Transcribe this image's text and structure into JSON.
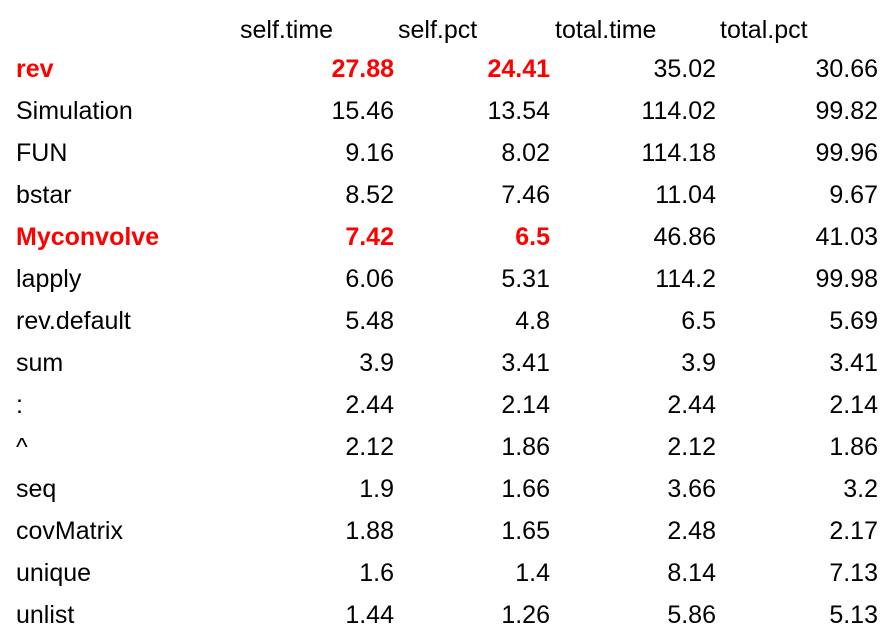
{
  "table": {
    "columns": [
      "self.time",
      "self.pct",
      "total.time",
      "total.pct"
    ],
    "rows": [
      {
        "name": "rev",
        "self_time": "27.88",
        "self_pct": "24.41",
        "total_time": "35.02",
        "total_pct": "30.66",
        "highlight": true
      },
      {
        "name": "Simulation",
        "self_time": "15.46",
        "self_pct": "13.54",
        "total_time": "114.02",
        "total_pct": "99.82",
        "highlight": false
      },
      {
        "name": "FUN",
        "self_time": "9.16",
        "self_pct": "8.02",
        "total_time": "114.18",
        "total_pct": "99.96",
        "highlight": false
      },
      {
        "name": "bstar",
        "self_time": "8.52",
        "self_pct": "7.46",
        "total_time": "11.04",
        "total_pct": "9.67",
        "highlight": false
      },
      {
        "name": "Myconvolve",
        "self_time": "7.42",
        "self_pct": "6.5",
        "total_time": "46.86",
        "total_pct": "41.03",
        "highlight": true
      },
      {
        "name": "lapply",
        "self_time": "6.06",
        "self_pct": "5.31",
        "total_time": "114.2",
        "total_pct": "99.98",
        "highlight": false
      },
      {
        "name": "rev.default",
        "self_time": "5.48",
        "self_pct": "4.8",
        "total_time": "6.5",
        "total_pct": "5.69",
        "highlight": false
      },
      {
        "name": "sum",
        "self_time": "3.9",
        "self_pct": "3.41",
        "total_time": "3.9",
        "total_pct": "3.41",
        "highlight": false
      },
      {
        "name": ":",
        "self_time": "2.44",
        "self_pct": "2.14",
        "total_time": "2.44",
        "total_pct": "2.14",
        "highlight": false
      },
      {
        "name": "^",
        "self_time": "2.12",
        "self_pct": "1.86",
        "total_time": "2.12",
        "total_pct": "1.86",
        "highlight": false
      },
      {
        "name": "seq",
        "self_time": "1.9",
        "self_pct": "1.66",
        "total_time": "3.66",
        "total_pct": "3.2",
        "highlight": false
      },
      {
        "name": "covMatrix",
        "self_time": "1.88",
        "self_pct": "1.65",
        "total_time": "2.48",
        "total_pct": "2.17",
        "highlight": false
      },
      {
        "name": "unique",
        "self_time": "1.6",
        "self_pct": "1.4",
        "total_time": "8.14",
        "total_pct": "7.13",
        "highlight": false
      },
      {
        "name": "unlist",
        "self_time": "1.44",
        "self_pct": "1.26",
        "total_time": "5.86",
        "total_pct": "5.13",
        "highlight": false
      }
    ]
  },
  "colors": {
    "highlight": "#ff0000",
    "text": "#000000",
    "background": "#ffffff"
  }
}
